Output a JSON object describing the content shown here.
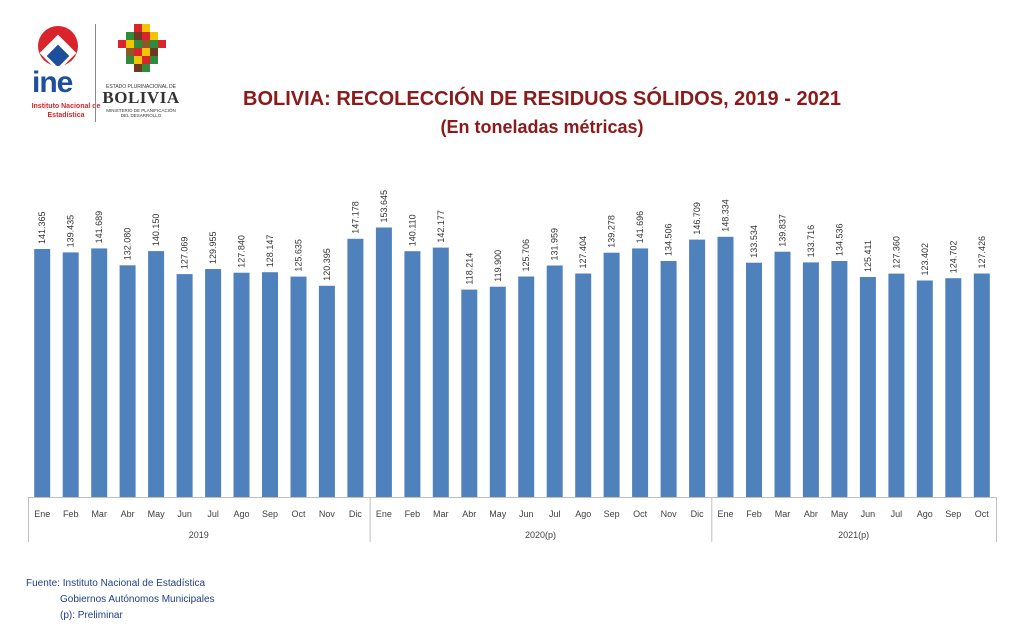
{
  "header": {
    "ine_logo_text": "ine",
    "ine_logo_sub": "Instituto Nacional de Estadística",
    "bolivia_logo_top": "ESTADO PLURINACIONAL DE",
    "bolivia_logo_text": "BOLIVIA",
    "bolivia_logo_sub": "MINISTERIO DE PLANIFICACIÓN DEL DESARROLLO"
  },
  "colors": {
    "bar": "#4f81bd",
    "title": "#8b1a1a",
    "source": "#1f3f8a",
    "axis": "#bfbfbf"
  },
  "chart_data": {
    "type": "bar",
    "title": "BOLIVIA: RECOLECCIÓN DE RESIDUOS SÓLIDOS, 2019 - 2021",
    "subtitle": "(En toneladas métricas)",
    "xlabel": "",
    "ylabel": "",
    "ylim": [
      0,
      175
    ],
    "grid": false,
    "legend": "none",
    "groups": [
      {
        "label": "2019",
        "start": 0,
        "end": 11
      },
      {
        "label": "2020(p)",
        "start": 12,
        "end": 23
      },
      {
        "label": "2021(p)",
        "start": 24,
        "end": 33
      }
    ],
    "categories": [
      "Ene",
      "Feb",
      "Mar",
      "Abr",
      "May",
      "Jun",
      "Jul",
      "Ago",
      "Sep",
      "Oct",
      "Nov",
      "Dic",
      "Ene",
      "Feb",
      "Mar",
      "Abr",
      "May",
      "Jun",
      "Jul",
      "Ago",
      "Sep",
      "Oct",
      "Nov",
      "Dic",
      "Ene",
      "Feb",
      "Mar",
      "Abr",
      "May",
      "Jun",
      "Jul",
      "Ago",
      "Sep",
      "Oct"
    ],
    "values": [
      141.365,
      139.435,
      141.689,
      132.08,
      140.15,
      127.069,
      129.955,
      127.84,
      128.147,
      125.635,
      120.395,
      147.178,
      153.645,
      140.11,
      142.177,
      118.214,
      119.9,
      125.706,
      131.959,
      127.404,
      139.278,
      141.696,
      134.506,
      146.709,
      148.334,
      133.534,
      139.837,
      133.716,
      134.536,
      125.411,
      127.36,
      123.402,
      124.702,
      127.426
    ],
    "labels": [
      "141.365",
      "139.435",
      "141.689",
      "132.080",
      "140.150",
      "127.069",
      "129.955",
      "127.840",
      "128.147",
      "125.635",
      "120.395",
      "147.178",
      "153.645",
      "140.110",
      "142.177",
      "118.214",
      "119.900",
      "125.706",
      "131.959",
      "127.404",
      "139.278",
      "141.696",
      "134.506",
      "146.709",
      "148.334",
      "133.534",
      "139.837",
      "133.716",
      "134.536",
      "125.411",
      "127.360",
      "123.402",
      "124.702",
      "127.426"
    ]
  },
  "footer": {
    "source_label": "Fuente:",
    "source_line1": "Instituto Nacional de Estadística",
    "source_line2": "Gobiernos Autónomos Municipales",
    "source_line3": "(p): Preliminar"
  }
}
